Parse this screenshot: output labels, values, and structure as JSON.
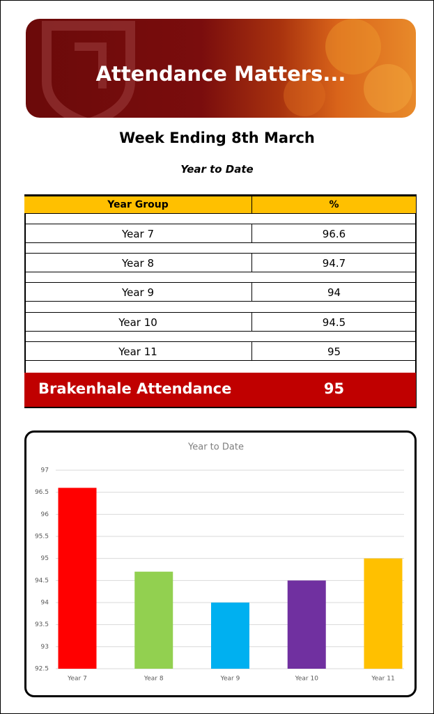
{
  "banner": {
    "title": "Attendance Matters..."
  },
  "heading": "Week Ending 8th March",
  "subheading": "Year to Date",
  "table": {
    "header": [
      "Year Group",
      "%"
    ],
    "rows": [
      [
        "Year 7",
        96.6
      ],
      [
        "Year 8",
        94.7
      ],
      [
        "Year 9",
        94
      ],
      [
        "Year 10",
        94.5
      ],
      [
        "Year 11",
        95
      ]
    ],
    "footer": [
      "Brakenhale Attendance",
      95
    ]
  },
  "chart_data": {
    "type": "bar",
    "title": "Year to Date",
    "categories": [
      "Year 7",
      "Year 8",
      "Year 9",
      "Year 10",
      "Year 11"
    ],
    "values": [
      96.6,
      94.7,
      94,
      94.5,
      95
    ],
    "colors": [
      "#ff0000",
      "#92d050",
      "#00b0f0",
      "#7030a0",
      "#ffc000"
    ],
    "ylim": [
      92.5,
      97
    ],
    "yticks": [
      92.5,
      93,
      93.5,
      94,
      94.5,
      95,
      95.5,
      96,
      96.5,
      97
    ],
    "grid": true
  }
}
